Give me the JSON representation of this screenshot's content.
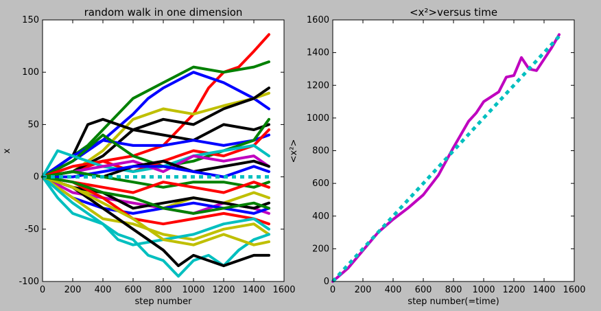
{
  "figure": {
    "background": "#bfbfbf"
  },
  "chart_data": [
    {
      "type": "line",
      "title": "random walk in one dimension",
      "xlabel": "step number",
      "ylabel": "x",
      "xlim": [
        0,
        1600
      ],
      "ylim": [
        -100,
        150
      ],
      "xticks": [
        0,
        200,
        400,
        600,
        800,
        1000,
        1200,
        1400,
        1600
      ],
      "yticks": [
        -100,
        -50,
        0,
        50,
        100,
        150
      ],
      "grid": false,
      "series": [
        {
          "color": "#ff0000",
          "x": [
            0,
            200,
            400,
            600,
            800,
            1000,
            1100,
            1200,
            1300,
            1400,
            1500
          ],
          "y": [
            0,
            5,
            15,
            20,
            30,
            60,
            85,
            100,
            105,
            120,
            136
          ]
        },
        {
          "color": "#008000",
          "x": [
            0,
            100,
            200,
            300,
            400,
            600,
            800,
            1000,
            1200,
            1400,
            1500
          ],
          "y": [
            0,
            10,
            20,
            30,
            45,
            75,
            90,
            105,
            100,
            105,
            110
          ]
        },
        {
          "color": "#0000ff",
          "x": [
            0,
            200,
            400,
            600,
            700,
            800,
            1000,
            1200,
            1400,
            1500
          ],
          "y": [
            0,
            15,
            35,
            60,
            75,
            85,
            100,
            90,
            75,
            65
          ]
        },
        {
          "color": "#bfbf00",
          "x": [
            0,
            200,
            400,
            600,
            800,
            1000,
            1200,
            1400,
            1500
          ],
          "y": [
            0,
            5,
            25,
            55,
            65,
            60,
            68,
            75,
            80
          ]
        },
        {
          "color": "#000000",
          "x": [
            0,
            200,
            400,
            600,
            800,
            1000,
            1200,
            1400,
            1500
          ],
          "y": [
            0,
            5,
            20,
            45,
            55,
            50,
            65,
            75,
            85
          ]
        },
        {
          "color": "#000000",
          "x": [
            0,
            200,
            300,
            400,
            600,
            800,
            1000,
            1200,
            1400,
            1500
          ],
          "y": [
            0,
            20,
            50,
            55,
            45,
            40,
            35,
            50,
            45,
            50
          ]
        },
        {
          "color": "#0000ff",
          "x": [
            0,
            200,
            400,
            600,
            800,
            1000,
            1200,
            1400,
            1500
          ],
          "y": [
            0,
            20,
            35,
            30,
            30,
            35,
            30,
            35,
            40
          ]
        },
        {
          "color": "#008000",
          "x": [
            0,
            200,
            400,
            600,
            800,
            1000,
            1200,
            1400,
            1500
          ],
          "y": [
            0,
            15,
            40,
            20,
            10,
            15,
            25,
            35,
            55
          ]
        },
        {
          "color": "#ff0000",
          "x": [
            0,
            200,
            400,
            600,
            800,
            1000,
            1200,
            1400,
            1500
          ],
          "y": [
            0,
            10,
            15,
            5,
            15,
            25,
            20,
            30,
            45
          ]
        },
        {
          "color": "#00bfbf",
          "x": [
            0,
            100,
            200,
            400,
            600,
            800,
            1000,
            1200,
            1400,
            1500
          ],
          "y": [
            0,
            25,
            20,
            10,
            5,
            10,
            20,
            25,
            30,
            20
          ]
        },
        {
          "color": "#bf00bf",
          "x": [
            0,
            200,
            400,
            600,
            800,
            1000,
            1200,
            1400,
            1500
          ],
          "y": [
            0,
            5,
            10,
            15,
            5,
            20,
            15,
            20,
            10
          ]
        },
        {
          "color": "#000000",
          "x": [
            0,
            200,
            400,
            600,
            800,
            1000,
            1200,
            1400,
            1500
          ],
          "y": [
            0,
            5,
            0,
            10,
            15,
            5,
            10,
            15,
            10
          ]
        },
        {
          "color": "#0000ff",
          "x": [
            0,
            200,
            400,
            600,
            800,
            1000,
            1200,
            1400,
            1500
          ],
          "y": [
            0,
            0,
            5,
            10,
            10,
            5,
            0,
            10,
            5
          ]
        },
        {
          "color": "#008000",
          "x": [
            0,
            200,
            400,
            600,
            800,
            1000,
            1200,
            1400,
            1500
          ],
          "y": [
            0,
            5,
            0,
            -5,
            -10,
            -5,
            -5,
            -10,
            -5
          ]
        },
        {
          "color": "#ff0000",
          "x": [
            0,
            200,
            400,
            600,
            800,
            1000,
            1200,
            1400,
            1500
          ],
          "y": [
            0,
            -5,
            -10,
            -15,
            -5,
            -10,
            -15,
            -5,
            -10
          ]
        },
        {
          "color": "#bfbf00",
          "x": [
            0,
            200,
            400,
            600,
            800,
            1000,
            1200,
            1400,
            1500
          ],
          "y": [
            0,
            -10,
            -20,
            -25,
            -30,
            -20,
            -25,
            -15,
            -20
          ]
        },
        {
          "color": "#bf00bf",
          "x": [
            0,
            200,
            400,
            600,
            800,
            1000,
            1200,
            1400,
            1500
          ],
          "y": [
            0,
            -15,
            -20,
            -25,
            -30,
            -35,
            -25,
            -30,
            -35
          ]
        },
        {
          "color": "#000000",
          "x": [
            0,
            200,
            400,
            600,
            800,
            1000,
            1200,
            1400,
            1500
          ],
          "y": [
            0,
            -10,
            -15,
            -30,
            -25,
            -20,
            -25,
            -30,
            -25
          ]
        },
        {
          "color": "#0000ff",
          "x": [
            0,
            200,
            400,
            600,
            800,
            1000,
            1200,
            1400,
            1500
          ],
          "y": [
            0,
            -20,
            -30,
            -35,
            -30,
            -25,
            -30,
            -35,
            -30
          ]
        },
        {
          "color": "#ff0000",
          "x": [
            0,
            200,
            400,
            600,
            800,
            1000,
            1200,
            1400,
            1500
          ],
          "y": [
            0,
            -5,
            -20,
            -40,
            -45,
            -40,
            -35,
            -40,
            -45
          ]
        },
        {
          "color": "#bfbf00",
          "x": [
            0,
            200,
            400,
            600,
            800,
            1000,
            1200,
            1400,
            1500
          ],
          "y": [
            0,
            -20,
            -40,
            -45,
            -55,
            -60,
            -50,
            -45,
            -55
          ]
        },
        {
          "color": "#00bfbf",
          "x": [
            0,
            100,
            200,
            300,
            400,
            500,
            600,
            700,
            800,
            900,
            1000,
            1100,
            1200,
            1300,
            1400,
            1500
          ],
          "y": [
            0,
            -20,
            -35,
            -40,
            -45,
            -55,
            -60,
            -75,
            -80,
            -95,
            -80,
            -75,
            -85,
            -70,
            -60,
            -55
          ]
        },
        {
          "color": "#00bfbf",
          "x": [
            0,
            200,
            400,
            500,
            600,
            800,
            1000,
            1200,
            1400,
            1500
          ],
          "y": [
            0,
            -25,
            -45,
            -60,
            -65,
            -60,
            -55,
            -45,
            -40,
            -50
          ]
        },
        {
          "color": "#000000",
          "x": [
            0,
            200,
            400,
            600,
            800,
            900,
            1000,
            1100,
            1200,
            1400,
            1500
          ],
          "y": [
            0,
            -10,
            -30,
            -50,
            -70,
            -85,
            -75,
            -80,
            -85,
            -75,
            -75
          ]
        },
        {
          "color": "#bfbf00",
          "x": [
            0,
            200,
            400,
            600,
            800,
            1000,
            1200,
            1400,
            1500
          ],
          "y": [
            0,
            -10,
            -25,
            -40,
            -60,
            -65,
            -55,
            -65,
            -62
          ]
        },
        {
          "color": "#008000",
          "x": [
            0,
            200,
            400,
            600,
            800,
            1000,
            1200,
            1400,
            1500
          ],
          "y": [
            0,
            -5,
            -15,
            -20,
            -30,
            -35,
            -30,
            -25,
            -30
          ]
        },
        {
          "color": "#00bfbf",
          "x": [
            0,
            1500
          ],
          "y": [
            0,
            0
          ],
          "style": "dashed"
        }
      ]
    },
    {
      "type": "line",
      "title": "<x²>versus time",
      "xlabel": "step number(=time)",
      "ylabel": "<x²>",
      "xlim": [
        0,
        1600
      ],
      "ylim": [
        0,
        1600
      ],
      "xticks": [
        0,
        200,
        400,
        600,
        800,
        1000,
        1200,
        1400,
        1600
      ],
      "yticks": [
        0,
        200,
        400,
        600,
        800,
        1000,
        1200,
        1400,
        1600
      ],
      "grid": false,
      "series": [
        {
          "color": "#bf00bf",
          "x": [
            0,
            100,
            200,
            300,
            400,
            500,
            600,
            700,
            800,
            850,
            900,
            950,
            1000,
            1050,
            1100,
            1150,
            1200,
            1250,
            1300,
            1350,
            1400,
            1450,
            1500
          ],
          "y": [
            0,
            80,
            190,
            300,
            380,
            450,
            530,
            650,
            820,
            900,
            980,
            1030,
            1100,
            1130,
            1160,
            1250,
            1260,
            1370,
            1300,
            1290,
            1360,
            1430,
            1510
          ]
        },
        {
          "color": "#00bfbf",
          "x": [
            0,
            1500
          ],
          "y": [
            0,
            1500
          ],
          "style": "dashed"
        }
      ]
    }
  ]
}
